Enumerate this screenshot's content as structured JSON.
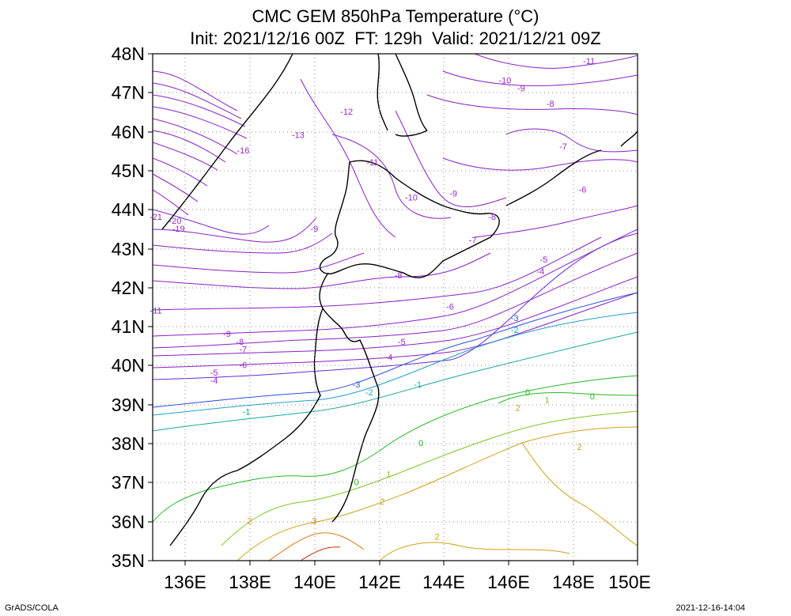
{
  "title": {
    "line1": "CMC GEM 850hPa Temperature (°C)",
    "line2": "Init: 2021/12/16 00Z  FT: 129h  Valid: 2021/12/21 09Z"
  },
  "axes": {
    "lat_labels": [
      "48N",
      "47N",
      "46N",
      "45N",
      "44N",
      "43N",
      "42N",
      "41N",
      "40N",
      "39N",
      "38N",
      "37N",
      "36N",
      "35N"
    ],
    "lon_labels": [
      "136E",
      "138E",
      "140E",
      "142E",
      "144E",
      "146E",
      "148E",
      "150E"
    ],
    "lon_range": [
      135,
      150
    ],
    "lat_range": [
      35,
      48
    ],
    "grid": "dotted"
  },
  "contour_labels": [
    {
      "text": "-11",
      "lon": 148.5,
      "lat": 47.8,
      "color": "#9a28c8"
    },
    {
      "text": "-10",
      "lon": 145.9,
      "lat": 47.3,
      "color": "#9a28c8"
    },
    {
      "text": "-9",
      "lon": 146.4,
      "lat": 47.1,
      "color": "#9a28c8"
    },
    {
      "text": "-8",
      "lon": 147.3,
      "lat": 46.7,
      "color": "#9a28c8"
    },
    {
      "text": "-7",
      "lon": 147.7,
      "lat": 45.6,
      "color": "#9a28c8"
    },
    {
      "text": "-6",
      "lon": 148.3,
      "lat": 44.5,
      "color": "#9a28c8"
    },
    {
      "text": "-12",
      "lon": 141.0,
      "lat": 46.5,
      "color": "#9a28c8"
    },
    {
      "text": "-13",
      "lon": 139.5,
      "lat": 45.9,
      "color": "#9a28c8"
    },
    {
      "text": "-16",
      "lon": 137.8,
      "lat": 45.5,
      "color": "#9a28c8"
    },
    {
      "text": "-11",
      "lon": 141.8,
      "lat": 45.2,
      "color": "#9a28c8"
    },
    {
      "text": "-10",
      "lon": 143.0,
      "lat": 44.3,
      "color": "#9a28c8"
    },
    {
      "text": "-9",
      "lon": 144.3,
      "lat": 44.4,
      "color": "#9a28c8"
    },
    {
      "text": "-8",
      "lon": 145.5,
      "lat": 43.8,
      "color": "#9a28c8"
    },
    {
      "text": "-7",
      "lon": 144.9,
      "lat": 43.2,
      "color": "#9a28c8"
    },
    {
      "text": "-21",
      "lon": 135.1,
      "lat": 43.8,
      "color": "#9a28c8"
    },
    {
      "text": "-20",
      "lon": 135.7,
      "lat": 43.7,
      "color": "#9a28c8"
    },
    {
      "text": "-19",
      "lon": 135.8,
      "lat": 43.5,
      "color": "#9a28c8"
    },
    {
      "text": "-9",
      "lon": 140.0,
      "lat": 43.5,
      "color": "#9a28c8"
    },
    {
      "text": "-8",
      "lon": 142.6,
      "lat": 42.3,
      "color": "#9a28c8"
    },
    {
      "text": "-5",
      "lon": 147.1,
      "lat": 42.7,
      "color": "#9a28c8"
    },
    {
      "text": "-4",
      "lon": 147.0,
      "lat": 42.4,
      "color": "#9a28c8"
    },
    {
      "text": "-11",
      "lon": 135.1,
      "lat": 41.4,
      "color": "#9a28c8"
    },
    {
      "text": "-6",
      "lon": 144.2,
      "lat": 41.5,
      "color": "#9a28c8"
    },
    {
      "text": "-9",
      "lon": 137.3,
      "lat": 40.8,
      "color": "#9a28c8"
    },
    {
      "text": "-8",
      "lon": 137.7,
      "lat": 40.6,
      "color": "#9a28c8"
    },
    {
      "text": "-7",
      "lon": 137.8,
      "lat": 40.4,
      "color": "#9a28c8"
    },
    {
      "text": "-6",
      "lon": 137.8,
      "lat": 40.0,
      "color": "#9a28c8"
    },
    {
      "text": "-5",
      "lon": 142.7,
      "lat": 40.6,
      "color": "#9a28c8"
    },
    {
      "text": "-4",
      "lon": 142.3,
      "lat": 40.2,
      "color": "#9a28c8"
    },
    {
      "text": "-5",
      "lon": 136.9,
      "lat": 39.8,
      "color": "#9a28c8"
    },
    {
      "text": "-4",
      "lon": 136.9,
      "lat": 39.6,
      "color": "#9a28c8"
    },
    {
      "text": "-3",
      "lon": 146.2,
      "lat": 41.2,
      "color": "#1f5fd0"
    },
    {
      "text": "-2",
      "lon": 146.2,
      "lat": 40.9,
      "color": "#1ea0c8"
    },
    {
      "text": "-3",
      "lon": 141.3,
      "lat": 39.5,
      "color": "#1f5fd0"
    },
    {
      "text": "-2",
      "lon": 141.7,
      "lat": 39.3,
      "color": "#1ea0c8"
    },
    {
      "text": "-1",
      "lon": 143.2,
      "lat": 39.5,
      "color": "#14a8a0"
    },
    {
      "text": "-1",
      "lon": 137.9,
      "lat": 38.8,
      "color": "#14a8a0"
    },
    {
      "text": "0",
      "lon": 146.6,
      "lat": 39.3,
      "color": "#22b822"
    },
    {
      "text": "0",
      "lon": 148.6,
      "lat": 39.2,
      "color": "#22b822"
    },
    {
      "text": "0",
      "lon": 141.3,
      "lat": 37.0,
      "color": "#22b822"
    },
    {
      "text": "0",
      "lon": 143.3,
      "lat": 38.0,
      "color": "#22b822"
    },
    {
      "text": "1",
      "lon": 142.3,
      "lat": 37.2,
      "color": "#7cc81e"
    },
    {
      "text": "1",
      "lon": 147.2,
      "lat": 39.1,
      "color": "#7cc81e"
    },
    {
      "text": "2",
      "lon": 146.3,
      "lat": 38.9,
      "color": "#d0a014"
    },
    {
      "text": "2",
      "lon": 148.2,
      "lat": 37.9,
      "color": "#d0a014"
    },
    {
      "text": "2",
      "lon": 142.1,
      "lat": 36.5,
      "color": "#d0a014"
    },
    {
      "text": "2",
      "lon": 143.8,
      "lat": 35.6,
      "color": "#d0a014"
    },
    {
      "text": "2",
      "lon": 138.0,
      "lat": 36.0,
      "color": "#d0a014"
    },
    {
      "text": "3",
      "lon": 140.0,
      "lat": 36.0,
      "color": "#e07814"
    }
  ],
  "footer": {
    "left": "GrADS/COLA",
    "right": "2021-12-16-14:04"
  }
}
